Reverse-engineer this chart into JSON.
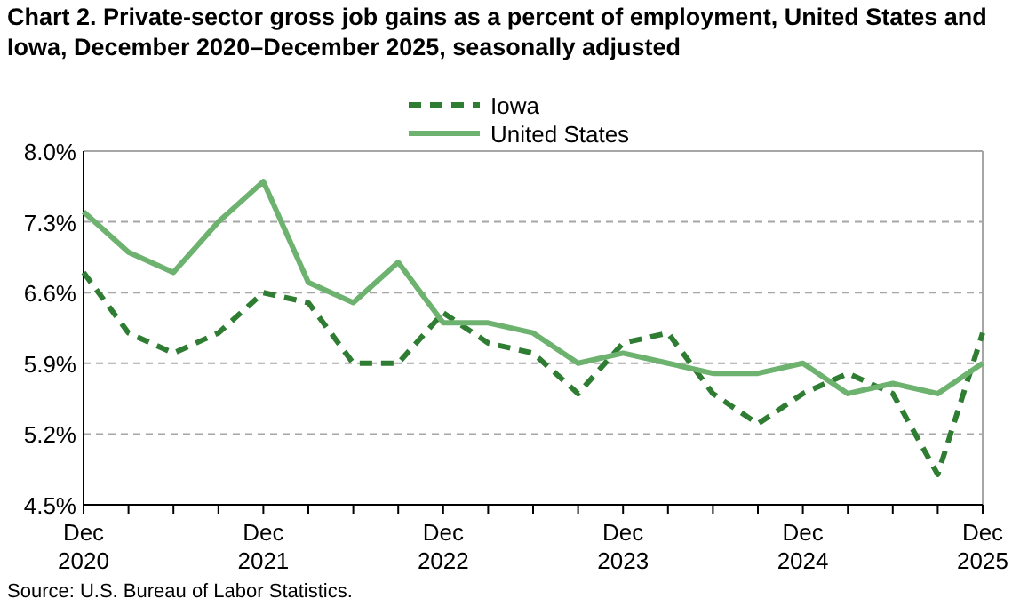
{
  "chart_data": {
    "type": "line",
    "title": "Chart 2. Private-sector gross job gains as a percent of employment, United States and Iowa, December 2020–December 2025, seasonally adjusted",
    "categories": [
      "Dec 2020",
      null,
      null,
      null,
      "Dec 2021",
      null,
      null,
      null,
      "Dec 2022",
      null,
      null,
      null,
      "Dec 2023",
      null,
      null,
      null,
      "Dec 2024",
      null,
      null,
      null,
      "Dec 2025"
    ],
    "series": [
      {
        "name": "Iowa",
        "color": "#2e7d32",
        "line_style": "dashed",
        "values": [
          6.8,
          6.2,
          6.0,
          6.2,
          6.6,
          6.5,
          5.9,
          5.9,
          6.4,
          6.1,
          6.0,
          5.6,
          6.1,
          6.2,
          5.6,
          5.3,
          5.6,
          5.8,
          5.6,
          4.8,
          6.2
        ]
      },
      {
        "name": "United States",
        "color": "#6db36f",
        "line_style": "solid",
        "values": [
          7.4,
          7.0,
          6.8,
          7.3,
          7.7,
          6.7,
          6.5,
          6.9,
          6.3,
          6.3,
          6.2,
          5.9,
          6.0,
          5.9,
          5.8,
          5.8,
          5.9,
          5.6,
          5.7,
          5.6,
          5.9
        ]
      }
    ],
    "ylim": [
      4.5,
      8.0
    ],
    "yticks": [
      {
        "value": 4.5,
        "label": "4.5%"
      },
      {
        "value": 5.2,
        "label": "5.2%"
      },
      {
        "value": 5.9,
        "label": "5.9%"
      },
      {
        "value": 6.6,
        "label": "6.6%"
      },
      {
        "value": 7.3,
        "label": "7.3%"
      },
      {
        "value": 8.0,
        "label": "8.0%"
      }
    ],
    "grid": "y",
    "legend": "top",
    "marker": "none",
    "annotations": [
      "Source: U.S. Bureau of Labor Statistics."
    ]
  }
}
